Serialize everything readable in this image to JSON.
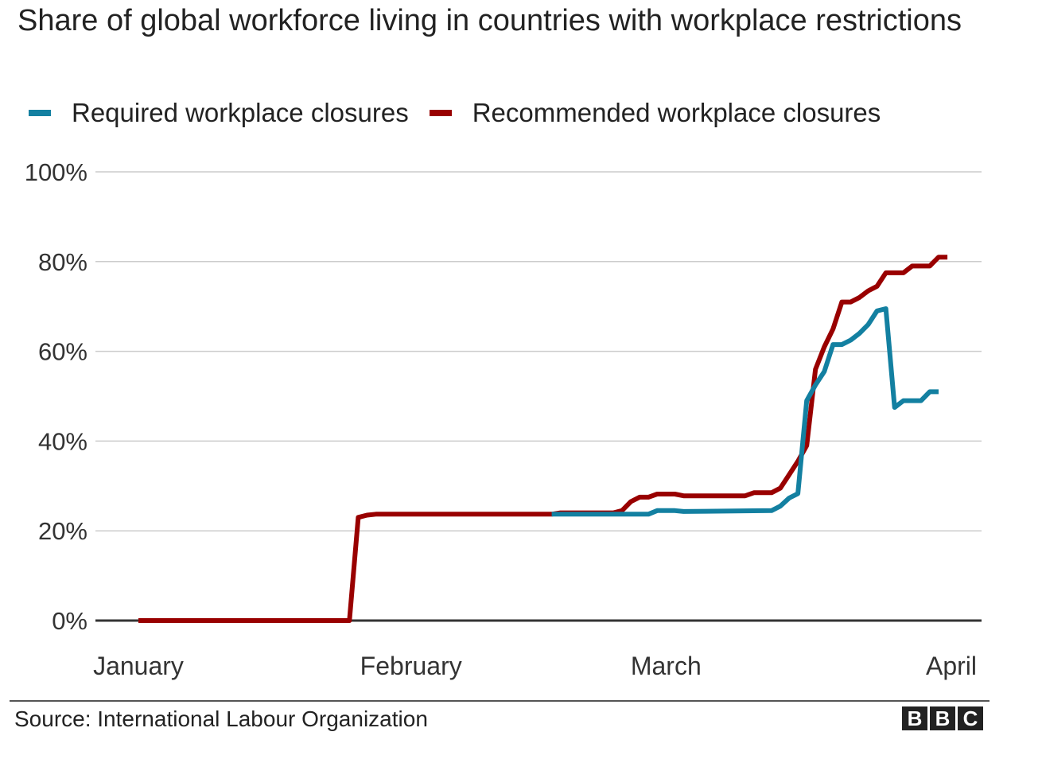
{
  "chart_data": {
    "type": "line",
    "title": "Share of global workforce living in countries with workplace restrictions",
    "ylim": [
      0,
      100
    ],
    "y_ticks": [
      {
        "value": 0,
        "label": "0%"
      },
      {
        "value": 20,
        "label": "20%"
      },
      {
        "value": 40,
        "label": "40%"
      },
      {
        "value": 60,
        "label": "60%"
      },
      {
        "value": 80,
        "label": "80%"
      },
      {
        "value": 100,
        "label": "100%"
      }
    ],
    "x_ticks": [
      {
        "date": "2020-01-01",
        "label": "January"
      },
      {
        "date": "2020-02-01",
        "label": "February"
      },
      {
        "date": "2020-03-01",
        "label": "March"
      },
      {
        "date": "2020-04-01",
        "label": "April"
      }
    ],
    "xlim": [
      "2020-01-01",
      "2020-04-01"
    ],
    "grid": true,
    "legend_position": "top-left",
    "series": [
      {
        "name": "Recommended workplace closures",
        "color": "#990000",
        "points": [
          [
            "2020-01-01",
            0
          ],
          [
            "2020-01-25",
            0
          ],
          [
            "2020-01-26",
            23
          ],
          [
            "2020-01-27",
            23.5
          ],
          [
            "2020-01-28",
            23.7
          ],
          [
            "2020-02-05",
            23.7
          ],
          [
            "2020-02-15",
            23.7
          ],
          [
            "2020-02-17",
            23.7
          ],
          [
            "2020-02-18",
            24
          ],
          [
            "2020-02-24",
            24
          ],
          [
            "2020-02-25",
            24.5
          ],
          [
            "2020-02-26",
            26.5
          ],
          [
            "2020-02-27",
            27.5
          ],
          [
            "2020-02-28",
            27.5
          ],
          [
            "2020-02-29",
            28.2
          ],
          [
            "2020-03-02",
            28.2
          ],
          [
            "2020-03-03",
            27.8
          ],
          [
            "2020-03-10",
            27.8
          ],
          [
            "2020-03-11",
            28.5
          ],
          [
            "2020-03-13",
            28.5
          ],
          [
            "2020-03-14",
            29.5
          ],
          [
            "2020-03-15",
            32.5
          ],
          [
            "2020-03-16",
            35.5
          ],
          [
            "2020-03-17",
            39
          ],
          [
            "2020-03-18",
            56
          ],
          [
            "2020-03-19",
            61
          ],
          [
            "2020-03-20",
            65
          ],
          [
            "2020-03-21",
            71
          ],
          [
            "2020-03-22",
            71
          ],
          [
            "2020-03-23",
            72
          ],
          [
            "2020-03-24",
            73.5
          ],
          [
            "2020-03-25",
            74.5
          ],
          [
            "2020-03-26",
            77.5
          ],
          [
            "2020-03-27",
            77.5
          ],
          [
            "2020-03-28",
            77.5
          ],
          [
            "2020-03-29",
            79
          ],
          [
            "2020-03-30",
            79
          ],
          [
            "2020-03-31",
            79
          ],
          [
            "2020-04-01",
            81
          ],
          [
            "2020-04-02",
            81
          ]
        ]
      },
      {
        "name": "Required workplace closures",
        "color": "#1380A1",
        "points": [
          [
            "2020-02-17",
            23.7
          ],
          [
            "2020-02-28",
            23.7
          ],
          [
            "2020-02-29",
            24.5
          ],
          [
            "2020-03-02",
            24.5
          ],
          [
            "2020-03-03",
            24.3
          ],
          [
            "2020-03-13",
            24.5
          ],
          [
            "2020-03-14",
            25.5
          ],
          [
            "2020-03-15",
            27.3
          ],
          [
            "2020-03-16",
            28.3
          ],
          [
            "2020-03-17",
            49
          ],
          [
            "2020-03-18",
            52.5
          ],
          [
            "2020-03-19",
            55.5
          ],
          [
            "2020-03-20",
            61.5
          ],
          [
            "2020-03-21",
            61.5
          ],
          [
            "2020-03-22",
            62.5
          ],
          [
            "2020-03-23",
            64
          ],
          [
            "2020-03-24",
            66
          ],
          [
            "2020-03-25",
            69
          ],
          [
            "2020-03-26",
            69.5
          ],
          [
            "2020-03-27",
            47.5
          ],
          [
            "2020-03-28",
            49
          ],
          [
            "2020-03-29",
            49
          ],
          [
            "2020-03-30",
            49
          ],
          [
            "2020-03-31",
            51
          ],
          [
            "2020-04-01",
            51
          ]
        ]
      }
    ]
  },
  "legend": [
    {
      "label": "Required workplace closures",
      "color": "#1380A1"
    },
    {
      "label": "Recommended workplace closures",
      "color": "#990000"
    }
  ],
  "footer": {
    "source": "Source: International Labour Organization",
    "logo_letters": [
      "B",
      "B",
      "C"
    ]
  }
}
